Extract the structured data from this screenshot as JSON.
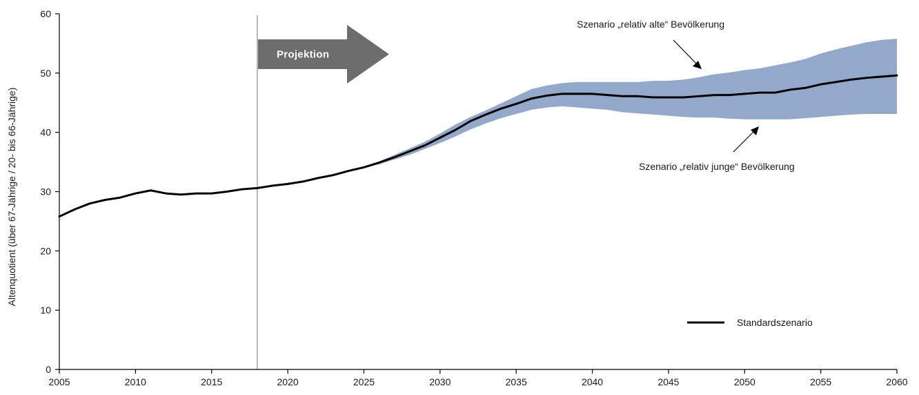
{
  "chart_data": {
    "type": "line",
    "ylabel": "Altenquotient (über 67-Jährige / 20- bis 66-Jährige)",
    "xlabel": "",
    "title": "",
    "xlim": [
      2005,
      2060
    ],
    "ylim": [
      0,
      60
    ],
    "x_ticks": [
      2005,
      2010,
      2015,
      2020,
      2025,
      2030,
      2035,
      2040,
      2045,
      2050,
      2055,
      2060
    ],
    "y_ticks": [
      0,
      10,
      20,
      30,
      40,
      50,
      60
    ],
    "grid": false,
    "legend_position": "bottom-right",
    "projection_start": 2018,
    "projection_label": "Projektion",
    "colors": {
      "line": "#000000",
      "band": "#93a9cb",
      "arrow": "#6d6d6d",
      "vline": "#8a8a8a"
    },
    "series": [
      {
        "name": "Standardszenario",
        "x": [
          2005,
          2006,
          2007,
          2008,
          2009,
          2010,
          2011,
          2012,
          2013,
          2014,
          2015,
          2016,
          2017,
          2018,
          2019,
          2020,
          2021,
          2022,
          2023,
          2024,
          2025,
          2026,
          2027,
          2028,
          2029,
          2030,
          2031,
          2032,
          2033,
          2034,
          2035,
          2036,
          2037,
          2038,
          2039,
          2040,
          2041,
          2042,
          2043,
          2044,
          2045,
          2046,
          2047,
          2048,
          2049,
          2050,
          2051,
          2052,
          2053,
          2054,
          2055,
          2056,
          2057,
          2058,
          2059,
          2060
        ],
        "values": [
          25.8,
          27.0,
          28.0,
          28.6,
          29.0,
          29.7,
          30.2,
          29.7,
          29.5,
          29.7,
          29.7,
          30.0,
          30.4,
          30.6,
          31.0,
          31.3,
          31.7,
          32.3,
          32.8,
          33.5,
          34.1,
          34.9,
          35.8,
          36.8,
          37.8,
          39.1,
          40.4,
          41.9,
          43.0,
          44.0,
          44.8,
          45.7,
          46.2,
          46.5,
          46.5,
          46.5,
          46.3,
          46.1,
          46.1,
          45.9,
          45.9,
          45.9,
          46.1,
          46.3,
          46.3,
          46.5,
          46.7,
          46.7,
          47.2,
          47.5,
          48.1,
          48.5,
          48.9,
          49.2,
          49.4,
          49.6
        ]
      },
      {
        "name": "Szenario „relativ alte“ Bevölkerung",
        "x": [
          2025,
          2026,
          2027,
          2028,
          2029,
          2030,
          2031,
          2032,
          2033,
          2034,
          2035,
          2036,
          2037,
          2038,
          2039,
          2040,
          2041,
          2042,
          2043,
          2044,
          2045,
          2046,
          2047,
          2048,
          2049,
          2050,
          2051,
          2052,
          2053,
          2054,
          2055,
          2056,
          2057,
          2058,
          2059,
          2060
        ],
        "values": [
          34.2,
          35.1,
          36.2,
          37.3,
          38.4,
          39.8,
          41.3,
          42.6,
          43.7,
          44.9,
          46.1,
          47.3,
          47.9,
          48.3,
          48.5,
          48.5,
          48.5,
          48.5,
          48.5,
          48.7,
          48.7,
          48.9,
          49.3,
          49.8,
          50.1,
          50.5,
          50.8,
          51.3,
          51.8,
          52.4,
          53.3,
          54.0,
          54.6,
          55.2,
          55.6,
          55.8
        ]
      },
      {
        "name": "Szenario „relativ junge“ Bevölkerung",
        "x": [
          2025,
          2026,
          2027,
          2028,
          2029,
          2030,
          2031,
          2032,
          2033,
          2034,
          2035,
          2036,
          2037,
          2038,
          2039,
          2040,
          2041,
          2042,
          2043,
          2044,
          2045,
          2046,
          2047,
          2048,
          2049,
          2050,
          2051,
          2052,
          2053,
          2054,
          2055,
          2056,
          2057,
          2058,
          2059,
          2060
        ],
        "values": [
          34.0,
          34.6,
          35.4,
          36.2,
          37.2,
          38.2,
          39.3,
          40.5,
          41.5,
          42.4,
          43.1,
          43.8,
          44.2,
          44.4,
          44.2,
          44.0,
          43.8,
          43.4,
          43.2,
          43.0,
          42.8,
          42.6,
          42.5,
          42.5,
          42.3,
          42.2,
          42.2,
          42.2,
          42.2,
          42.4,
          42.6,
          42.8,
          43.0,
          43.1,
          43.1,
          43.1
        ]
      }
    ],
    "annotations": {
      "old": "Szenario „relativ alte“ Bevölkerung",
      "young": "Szenario „relativ junge“ Bevölkerung"
    },
    "legend": {
      "label": "Standardszenario"
    }
  }
}
